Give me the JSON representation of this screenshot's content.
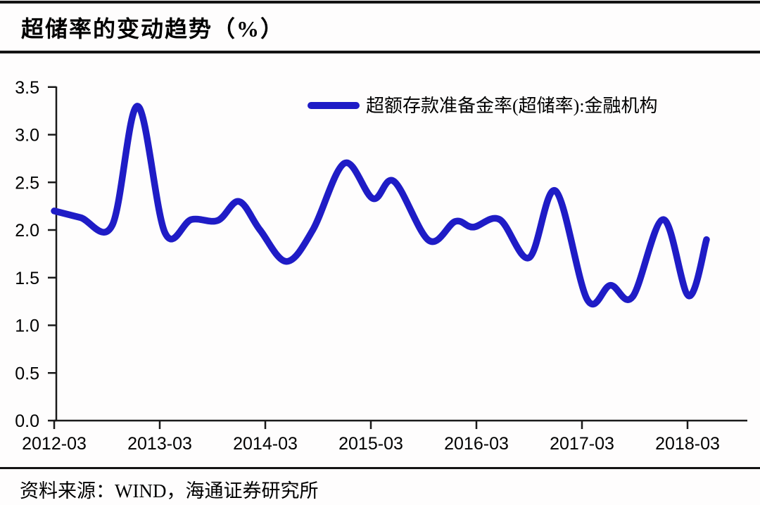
{
  "header": {
    "title": "超储率的变动趋势（%）"
  },
  "legend": {
    "label": "超额存款准备金率(超储率):金融机构"
  },
  "source": {
    "text": "资料来源：WIND，海通证券研究所"
  },
  "colors": {
    "series_blue": "#1f1cc6",
    "axis": "#1a1a1a",
    "text": "#000000",
    "background": "#fefdfd"
  },
  "chart_data": {
    "type": "line",
    "title": "超储率的变动趋势（%）",
    "xlabel": "",
    "ylabel": "",
    "ylim": [
      0.0,
      3.5
    ],
    "xlim_decimal_year": [
      2012.25,
      2018.82
    ],
    "grid": false,
    "legend_position": "top-center",
    "y_ticks": [
      {
        "label": "3.5",
        "value": 3.5
      },
      {
        "label": "3.0",
        "value": 3.0
      },
      {
        "label": "2.5",
        "value": 2.5
      },
      {
        "label": "2.0",
        "value": 2.0
      },
      {
        "label": "1.5",
        "value": 1.5
      },
      {
        "label": "1.0",
        "value": 1.0
      },
      {
        "label": "0.5",
        "value": 0.5
      },
      {
        "label": "0.0",
        "value": 0.0
      }
    ],
    "x_ticks": [
      {
        "label": "2012-03",
        "t": 2012.25
      },
      {
        "label": "2013-03",
        "t": 2013.25
      },
      {
        "label": "2014-03",
        "t": 2014.25
      },
      {
        "label": "2015-03",
        "t": 2015.25
      },
      {
        "label": "2016-03",
        "t": 2016.25
      },
      {
        "label": "2017-03",
        "t": 2017.25
      },
      {
        "label": "2018-03",
        "t": 2018.25
      }
    ],
    "series": [
      {
        "name": "超额存款准备金率(超储率):金融机构",
        "color": "#1f1cc6",
        "x_unit": "decimal_year",
        "points": [
          [
            2012.25,
            2.2
          ],
          [
            2012.5,
            2.13
          ],
          [
            2012.8,
            2.05
          ],
          [
            2013.04,
            3.3
          ],
          [
            2013.3,
            1.97
          ],
          [
            2013.55,
            2.11
          ],
          [
            2013.8,
            2.1
          ],
          [
            2014.0,
            2.3
          ],
          [
            2014.2,
            2.0
          ],
          [
            2014.45,
            1.67
          ],
          [
            2014.7,
            2.0
          ],
          [
            2015.0,
            2.7
          ],
          [
            2015.27,
            2.33
          ],
          [
            2015.47,
            2.51
          ],
          [
            2015.8,
            1.89
          ],
          [
            2016.05,
            2.09
          ],
          [
            2016.22,
            2.03
          ],
          [
            2016.47,
            2.11
          ],
          [
            2016.75,
            1.71
          ],
          [
            2017.0,
            2.41
          ],
          [
            2017.3,
            1.27
          ],
          [
            2017.52,
            1.42
          ],
          [
            2017.73,
            1.3
          ],
          [
            2018.02,
            2.11
          ],
          [
            2018.26,
            1.31
          ],
          [
            2018.43,
            1.9
          ]
        ]
      }
    ]
  }
}
